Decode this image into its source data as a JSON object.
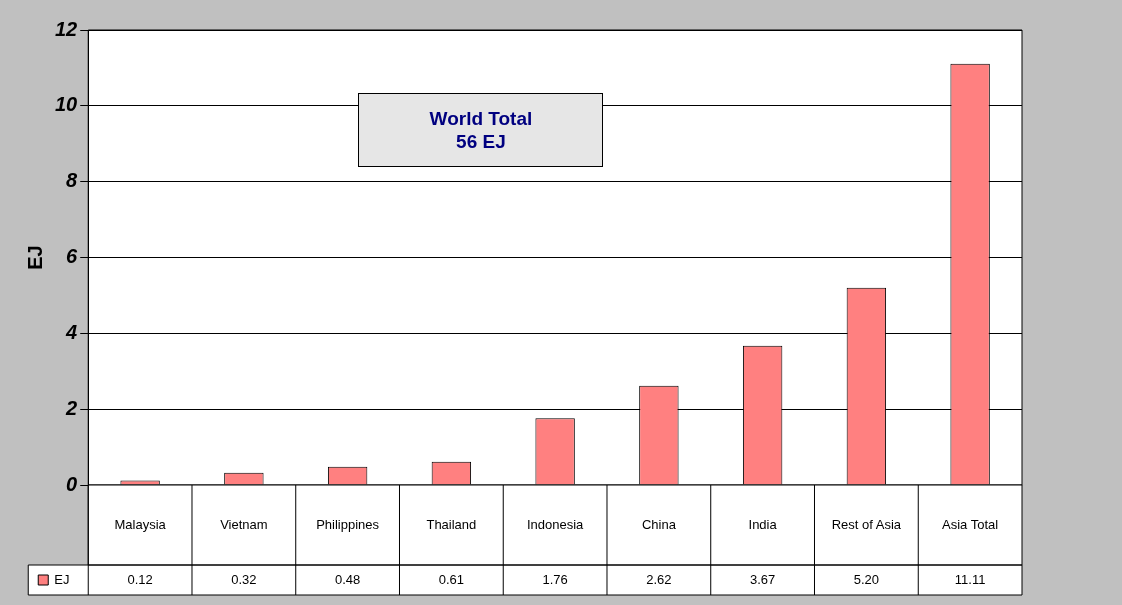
{
  "chart_data": {
    "type": "bar",
    "ylabel": "EJ",
    "categories": [
      "Malaysia",
      "Vietnam",
      "Philippines",
      "Thailand",
      "Indonesia",
      "China",
      "India",
      "Rest of Asia",
      "Asia Total"
    ],
    "series": [
      {
        "name": "EJ",
        "color": "#ff8080",
        "values": [
          0.12,
          0.32,
          0.48,
          0.61,
          1.76,
          2.62,
          3.67,
          5.2,
          11.11
        ]
      }
    ],
    "value_labels": [
      "0.12",
      "0.32",
      "0.48",
      "0.61",
      "1.76",
      "2.62",
      "3.67",
      "5.20",
      "11.11"
    ],
    "ylim": [
      0,
      12
    ],
    "yticks": [
      0,
      2,
      4,
      6,
      8,
      10,
      12
    ],
    "grid": "y",
    "legend": "bottom",
    "annotations": [
      "World Total\n56 EJ"
    ]
  }
}
